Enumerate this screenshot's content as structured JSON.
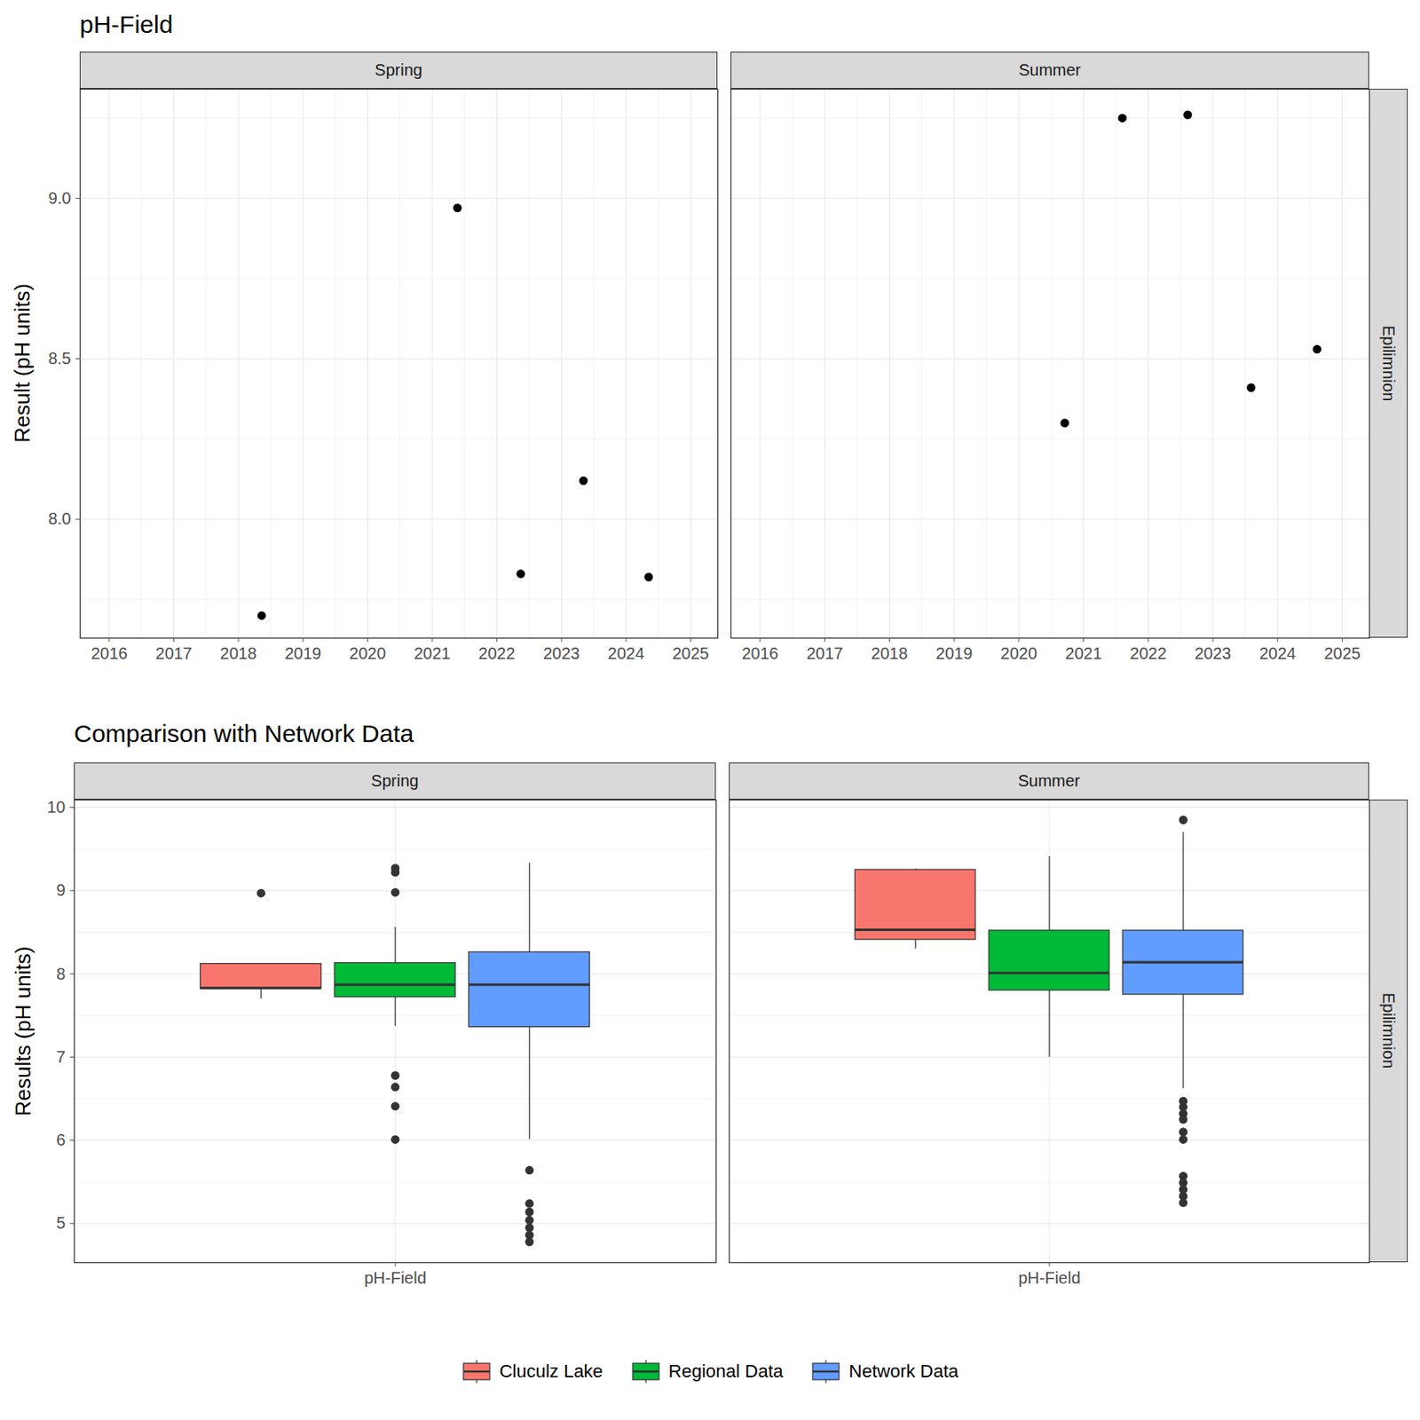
{
  "chart_data": [
    {
      "type": "scatter",
      "title": "pH-Field",
      "ylabel": "Result (pH units)",
      "facet_row": "Epilimnion",
      "xlim": [
        2015.55,
        2025.42
      ],
      "xticks": [
        2016,
        2017,
        2018,
        2019,
        2020,
        2021,
        2022,
        2023,
        2024,
        2025
      ],
      "ylim": [
        7.63,
        9.34
      ],
      "yticks": [
        {
          "value": 8,
          "label": "8.0"
        },
        8.5,
        {
          "value": 9,
          "label": "9.0"
        }
      ],
      "grid": true,
      "color": "#000000",
      "marker": "circle",
      "panels": [
        {
          "title": "Spring",
          "x": [
            2018.36,
            2021.39,
            2022.37,
            2023.34,
            2024.35
          ],
          "values": [
            7.7,
            8.97,
            7.83,
            8.12,
            7.82
          ]
        },
        {
          "title": "Summer",
          "x": [
            2020.71,
            2021.6,
            2022.61,
            2023.59,
            2024.61
          ],
          "values": [
            8.3,
            9.25,
            9.26,
            8.41,
            8.53
          ]
        }
      ]
    },
    {
      "type": "box",
      "title": "Comparison with Network Data",
      "ylabel": "Results (pH units)",
      "facet_row": "Epilimnion",
      "categories": [
        "pH-Field"
      ],
      "ylim": [
        4.53,
        10.09
      ],
      "yticks": [
        5,
        6,
        7,
        8,
        9,
        10
      ],
      "grid": true,
      "legend": "bottom",
      "series": [
        {
          "name": "Cluculz Lake",
          "color": "#F8766D"
        },
        {
          "name": "Regional Data",
          "color": "#00BA38"
        },
        {
          "name": "Network Data",
          "color": "#619CFF"
        }
      ],
      "panels": [
        {
          "title": "Spring",
          "boxes": [
            {
              "low": 7.7,
              "q1": 7.82,
              "median": 7.83,
              "q3": 8.12,
              "high": 8.12,
              "outliers": [
                8.97
              ]
            },
            {
              "low": 7.37,
              "q1": 7.72,
              "median": 7.87,
              "q3": 8.13,
              "high": 8.56,
              "outliers": [
                9.27,
                9.22,
                8.98,
                6.78,
                6.64,
                6.41,
                6.01
              ]
            },
            {
              "low": 6.01,
              "q1": 7.36,
              "median": 7.87,
              "q3": 8.26,
              "high": 9.33,
              "outliers": [
                5.64,
                5.24,
                5.14,
                5.04,
                4.95,
                4.86,
                4.78
              ]
            }
          ]
        },
        {
          "title": "Summer",
          "boxes": [
            {
              "low": 8.3,
              "q1": 8.41,
              "median": 8.53,
              "q3": 9.25,
              "high": 9.26,
              "outliers": []
            },
            {
              "low": 7.0,
              "q1": 7.8,
              "median": 8.01,
              "q3": 8.52,
              "high": 9.41,
              "outliers": []
            },
            {
              "low": 6.62,
              "q1": 7.75,
              "median": 8.14,
              "q3": 8.52,
              "high": 9.7,
              "outliers": [
                9.85,
                6.47,
                6.4,
                6.32,
                6.25,
                6.1,
                6.01,
                5.57,
                5.49,
                5.41,
                5.33,
                5.25
              ]
            }
          ]
        }
      ]
    }
  ]
}
